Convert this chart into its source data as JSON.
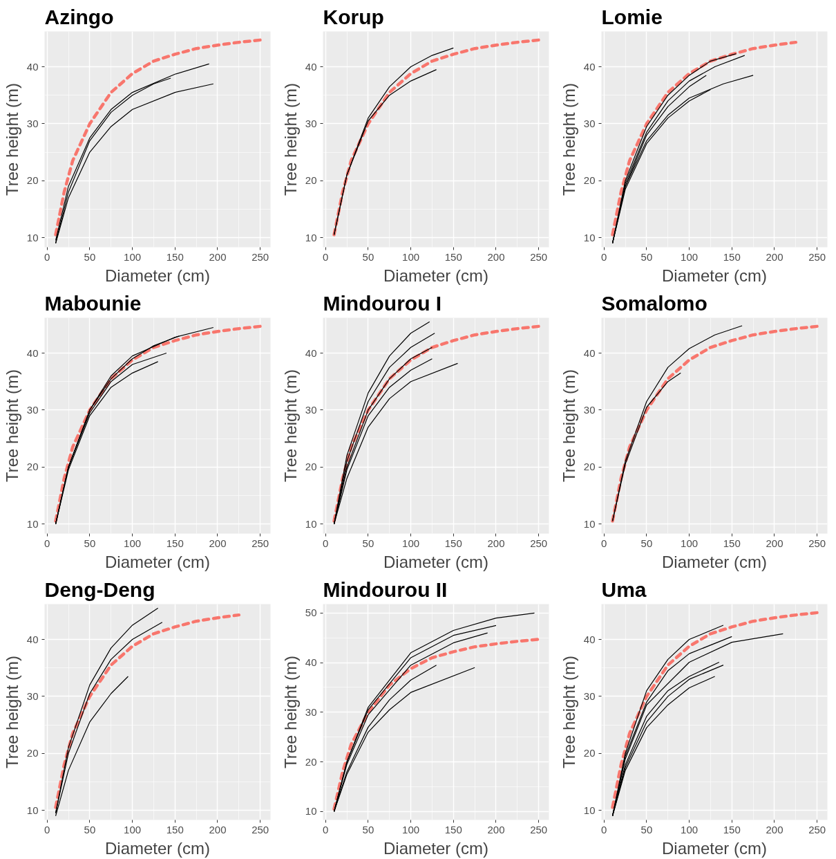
{
  "chart_data": [
    {
      "type": "line",
      "title": "Azingo",
      "xlabel": "Diameter (cm)",
      "ylabel": "Tree height (m)",
      "xlim": [
        -3,
        262
      ],
      "ylim": [
        8.3,
        46.2
      ],
      "xticks": [
        0,
        50,
        100,
        150,
        200,
        250
      ],
      "yticks": [
        10,
        20,
        30,
        40
      ],
      "grid": true,
      "series": [
        {
          "color": "#000000",
          "x": [
            10,
            25,
            50,
            75,
            100,
            150,
            190
          ],
          "values": [
            9.5,
            19,
            27.5,
            32.5,
            35.5,
            38.7,
            40.5
          ]
        },
        {
          "color": "#000000",
          "x": [
            10,
            25,
            50,
            75,
            100,
            125,
            145
          ],
          "values": [
            9,
            18,
            27,
            32,
            35,
            37,
            38
          ]
        },
        {
          "color": "#000000",
          "x": [
            10,
            25,
            50,
            75,
            100,
            150,
            195
          ],
          "values": [
            9,
            17,
            25,
            29.5,
            32.5,
            35.5,
            37
          ]
        },
        {
          "color": "#f8766d",
          "line_style": "dashed",
          "x": [
            10,
            20,
            30,
            50,
            75,
            100,
            125,
            150,
            175,
            200,
            225,
            250
          ],
          "values": [
            10.5,
            18,
            23.5,
            30,
            35.5,
            38.8,
            41,
            42.2,
            43.2,
            43.8,
            44.3,
            44.7
          ]
        }
      ]
    },
    {
      "type": "line",
      "title": "Korup",
      "xlabel": "Diameter (cm)",
      "ylabel": "Tree height (m)",
      "xlim": [
        -3,
        262
      ],
      "ylim": [
        8.3,
        46.2
      ],
      "xticks": [
        0,
        50,
        100,
        150,
        200,
        250
      ],
      "yticks": [
        10,
        20,
        30,
        40
      ],
      "grid": true,
      "series": [
        {
          "color": "#000000",
          "x": [
            10,
            25,
            50,
            75,
            100,
            125,
            150
          ],
          "values": [
            10.5,
            21,
            31,
            36.5,
            40,
            42,
            43.3
          ]
        },
        {
          "color": "#000000",
          "x": [
            10,
            25,
            50,
            75,
            100,
            130
          ],
          "values": [
            10.5,
            21,
            30.5,
            35,
            37.5,
            39.5
          ]
        },
        {
          "color": "#f8766d",
          "line_style": "dashed",
          "x": [
            10,
            20,
            30,
            50,
            75,
            100,
            125,
            150,
            175,
            200,
            225,
            250
          ],
          "values": [
            10.5,
            18,
            23.5,
            30,
            35.5,
            38.8,
            41,
            42.2,
            43.2,
            43.8,
            44.3,
            44.7
          ]
        }
      ]
    },
    {
      "type": "line",
      "title": "Lomie",
      "xlabel": "Diameter (cm)",
      "ylabel": "Tree height (m)",
      "xlim": [
        -3,
        262
      ],
      "ylim": [
        8.3,
        46.2
      ],
      "xticks": [
        0,
        50,
        100,
        150,
        200,
        250
      ],
      "yticks": [
        10,
        20,
        30,
        40
      ],
      "grid": true,
      "series": [
        {
          "color": "#000000",
          "x": [
            10,
            25,
            50,
            75,
            100,
            125,
            155
          ],
          "values": [
            9,
            20,
            29.5,
            35,
            38.5,
            41,
            42.3
          ]
        },
        {
          "color": "#000000",
          "x": [
            10,
            25,
            50,
            75,
            100,
            130,
            165
          ],
          "values": [
            9,
            19.5,
            28.5,
            34,
            37.5,
            40,
            42
          ]
        },
        {
          "color": "#000000",
          "x": [
            10,
            25,
            50,
            75,
            100,
            140,
            175
          ],
          "values": [
            9,
            19,
            27,
            31.5,
            34.5,
            37,
            38.5
          ]
        },
        {
          "color": "#000000",
          "x": [
            10,
            25,
            50,
            75,
            100,
            125
          ],
          "values": [
            9,
            18.5,
            26.5,
            31,
            34,
            36
          ]
        },
        {
          "color": "#000000",
          "x": [
            10,
            25,
            50,
            75,
            100,
            120
          ],
          "values": [
            9,
            19,
            28,
            33,
            36.5,
            38.5
          ]
        },
        {
          "color": "#f8766d",
          "line_style": "dashed",
          "x": [
            10,
            20,
            30,
            50,
            75,
            100,
            125,
            150,
            175,
            200,
            225
          ],
          "values": [
            10.5,
            18,
            23.5,
            30,
            35.5,
            38.8,
            41,
            42.2,
            43.2,
            43.8,
            44.3
          ]
        }
      ]
    },
    {
      "type": "line",
      "title": "Mabounie",
      "xlabel": "Diameter (cm)",
      "ylabel": "Tree height (m)",
      "xlim": [
        -3,
        262
      ],
      "ylim": [
        8.3,
        46.2
      ],
      "xticks": [
        0,
        50,
        100,
        150,
        200,
        250
      ],
      "yticks": [
        10,
        20,
        30,
        40
      ],
      "grid": true,
      "series": [
        {
          "color": "#000000",
          "x": [
            10,
            25,
            50,
            75,
            100,
            150,
            195
          ],
          "values": [
            10,
            20,
            30,
            36,
            39.5,
            42.8,
            44.5
          ]
        },
        {
          "color": "#000000",
          "x": [
            10,
            25,
            50,
            75,
            100,
            125,
            155
          ],
          "values": [
            10,
            20,
            30,
            35.5,
            39,
            41.3,
            43
          ]
        },
        {
          "color": "#000000",
          "x": [
            10,
            25,
            50,
            75,
            100,
            130
          ],
          "values": [
            10,
            19.5,
            29,
            34,
            36.5,
            38.5
          ]
        },
        {
          "color": "#000000",
          "x": [
            10,
            25,
            50,
            75,
            100,
            140
          ],
          "values": [
            10,
            20,
            29.5,
            35,
            38,
            40
          ]
        },
        {
          "color": "#f8766d",
          "line_style": "dashed",
          "x": [
            10,
            20,
            30,
            50,
            75,
            100,
            125,
            150,
            175,
            200,
            225,
            250
          ],
          "values": [
            10.5,
            18,
            23.5,
            30,
            35.5,
            38.8,
            41,
            42.2,
            43.2,
            43.8,
            44.3,
            44.7
          ]
        }
      ]
    },
    {
      "type": "line",
      "title": "Mindourou I",
      "xlabel": "Diameter (cm)",
      "ylabel": "Tree height (m)",
      "xlim": [
        -3,
        262
      ],
      "ylim": [
        8.3,
        46.2
      ],
      "xticks": [
        0,
        50,
        100,
        150,
        200,
        250
      ],
      "yticks": [
        10,
        20,
        30,
        40
      ],
      "grid": true,
      "series": [
        {
          "color": "#000000",
          "x": [
            10,
            25,
            50,
            75,
            100,
            122
          ],
          "values": [
            10,
            22,
            33,
            39.5,
            43.5,
            45.5
          ]
        },
        {
          "color": "#000000",
          "x": [
            10,
            25,
            50,
            75,
            100,
            128
          ],
          "values": [
            10,
            21,
            31.5,
            37.5,
            41,
            43.5
          ]
        },
        {
          "color": "#000000",
          "x": [
            10,
            25,
            50,
            75,
            100,
            125
          ],
          "values": [
            10,
            20,
            30,
            35.5,
            39,
            41
          ]
        },
        {
          "color": "#000000",
          "x": [
            10,
            25,
            50,
            75,
            100,
            125
          ],
          "values": [
            10,
            19.5,
            29,
            34,
            37,
            39
          ]
        },
        {
          "color": "#000000",
          "x": [
            10,
            25,
            50,
            75,
            100,
            155
          ],
          "values": [
            10,
            18,
            27,
            32,
            35,
            38.2
          ]
        },
        {
          "color": "#f8766d",
          "line_style": "dashed",
          "x": [
            10,
            20,
            30,
            50,
            75,
            100,
            125,
            150,
            175,
            200,
            225,
            250
          ],
          "values": [
            10.5,
            18,
            23.5,
            30,
            35.5,
            38.8,
            41,
            42.2,
            43.2,
            43.8,
            44.3,
            44.7
          ]
        }
      ]
    },
    {
      "type": "line",
      "title": "Somalomo",
      "xlabel": "Diameter (cm)",
      "ylabel": "Tree height (m)",
      "xlim": [
        -3,
        262
      ],
      "ylim": [
        8.3,
        46.2
      ],
      "xticks": [
        0,
        50,
        100,
        150,
        200,
        250
      ],
      "yticks": [
        10,
        20,
        30,
        40
      ],
      "grid": true,
      "series": [
        {
          "color": "#000000",
          "x": [
            10,
            25,
            50,
            75,
            100,
            130,
            162
          ],
          "values": [
            10.5,
            21,
            31.5,
            37.5,
            40.8,
            43.2,
            44.8
          ]
        },
        {
          "color": "#000000",
          "x": [
            10,
            25,
            50,
            75,
            90
          ],
          "values": [
            10.5,
            20.5,
            30.5,
            35,
            36.5
          ]
        },
        {
          "color": "#f8766d",
          "line_style": "dashed",
          "x": [
            10,
            20,
            30,
            50,
            75,
            100,
            125,
            150,
            175,
            200,
            225,
            250
          ],
          "values": [
            10.5,
            18,
            23.5,
            30,
            35.5,
            38.8,
            41,
            42.2,
            43.2,
            43.8,
            44.3,
            44.7
          ]
        }
      ]
    },
    {
      "type": "line",
      "title": "Deng-Deng",
      "xlabel": "Diameter (cm)",
      "ylabel": "Tree height (m)",
      "xlim": [
        -3,
        262
      ],
      "ylim": [
        8.3,
        46.2
      ],
      "xticks": [
        0,
        50,
        100,
        150,
        200,
        250
      ],
      "yticks": [
        10,
        20,
        30,
        40
      ],
      "grid": true,
      "series": [
        {
          "color": "#000000",
          "x": [
            10,
            25,
            50,
            75,
            100,
            130
          ],
          "values": [
            9.5,
            21,
            32,
            38.5,
            42.5,
            45.5
          ]
        },
        {
          "color": "#000000",
          "x": [
            10,
            25,
            50,
            75,
            100,
            135
          ],
          "values": [
            9.5,
            20,
            30.5,
            36.5,
            40,
            43
          ]
        },
        {
          "color": "#000000",
          "x": [
            10,
            25,
            50,
            75,
            95
          ],
          "values": [
            9,
            17,
            25.5,
            30.5,
            33.5
          ]
        },
        {
          "color": "#f8766d",
          "line_style": "dashed",
          "x": [
            10,
            20,
            30,
            50,
            75,
            100,
            125,
            150,
            175,
            200,
            225
          ],
          "values": [
            10.5,
            18,
            23.5,
            30,
            35.5,
            38.8,
            41,
            42.2,
            43.2,
            43.8,
            44.3
          ]
        }
      ]
    },
    {
      "type": "line",
      "title": "Mindourou II",
      "xlabel": "Diameter (cm)",
      "ylabel": "Tree height (m)",
      "xlim": [
        -3,
        262
      ],
      "ylim": [
        8.3,
        51.8
      ],
      "xticks": [
        0,
        50,
        100,
        150,
        200,
        250
      ],
      "yticks": [
        10,
        20,
        30,
        40,
        50
      ],
      "grid": true,
      "series": [
        {
          "color": "#000000",
          "x": [
            10,
            25,
            50,
            100,
            150,
            200,
            245
          ],
          "values": [
            10,
            20,
            31,
            42,
            46.5,
            49,
            50
          ]
        },
        {
          "color": "#000000",
          "x": [
            10,
            25,
            50,
            100,
            150,
            200
          ],
          "values": [
            10,
            20,
            30.5,
            41,
            45.5,
            47.5
          ]
        },
        {
          "color": "#000000",
          "x": [
            10,
            25,
            50,
            100,
            150,
            190
          ],
          "values": [
            10,
            19.5,
            29.5,
            39.5,
            44,
            46
          ]
        },
        {
          "color": "#000000",
          "x": [
            10,
            25,
            50,
            75,
            100,
            130
          ],
          "values": [
            10,
            18,
            27,
            32.5,
            36.5,
            39.5
          ]
        },
        {
          "color": "#000000",
          "x": [
            10,
            25,
            50,
            75,
            100,
            175
          ],
          "values": [
            10,
            17.5,
            26,
            30.5,
            34,
            39
          ]
        },
        {
          "color": "#f8766d",
          "line_style": "dashed",
          "x": [
            10,
            20,
            30,
            50,
            75,
            100,
            125,
            150,
            175,
            200,
            225,
            250
          ],
          "values": [
            10.5,
            18,
            23.5,
            30,
            35.5,
            38.8,
            41,
            42.2,
            43.2,
            43.8,
            44.3,
            44.7
          ]
        }
      ]
    },
    {
      "type": "line",
      "title": "Uma",
      "xlabel": "Diameter (cm)",
      "ylabel": "Tree height (m)",
      "xlim": [
        -3,
        262
      ],
      "ylim": [
        8.3,
        46.2
      ],
      "xticks": [
        0,
        50,
        100,
        150,
        200,
        250
      ],
      "yticks": [
        10,
        20,
        30,
        40
      ],
      "grid": true,
      "series": [
        {
          "color": "#000000",
          "x": [
            10,
            25,
            50,
            75,
            100,
            140
          ],
          "values": [
            9,
            20,
            31,
            36.5,
            40,
            42.5
          ]
        },
        {
          "color": "#000000",
          "x": [
            10,
            25,
            50,
            100,
            150,
            210
          ],
          "values": [
            9,
            19,
            28.5,
            36,
            39.5,
            41
          ]
        },
        {
          "color": "#000000",
          "x": [
            10,
            25,
            50,
            75,
            100,
            150
          ],
          "values": [
            9,
            19.5,
            29,
            34.5,
            37.5,
            40.5
          ]
        },
        {
          "color": "#000000",
          "x": [
            10,
            25,
            50,
            75,
            100,
            135
          ],
          "values": [
            9,
            18,
            26.5,
            31,
            33.5,
            36
          ]
        },
        {
          "color": "#000000",
          "x": [
            10,
            25,
            50,
            75,
            100,
            140
          ],
          "values": [
            9,
            17.5,
            25.5,
            30,
            33,
            35.5
          ]
        },
        {
          "color": "#000000",
          "x": [
            10,
            25,
            50,
            75,
            100,
            130
          ],
          "values": [
            9,
            17,
            24.5,
            28.5,
            31.5,
            33.5
          ]
        },
        {
          "color": "#f8766d",
          "line_style": "dashed",
          "x": [
            10,
            20,
            30,
            50,
            75,
            100,
            125,
            150,
            175,
            200,
            225,
            250
          ],
          "values": [
            10.5,
            18,
            23.5,
            30,
            35.5,
            38.8,
            41,
            42.2,
            43.2,
            43.8,
            44.3,
            44.7
          ]
        }
      ]
    }
  ]
}
